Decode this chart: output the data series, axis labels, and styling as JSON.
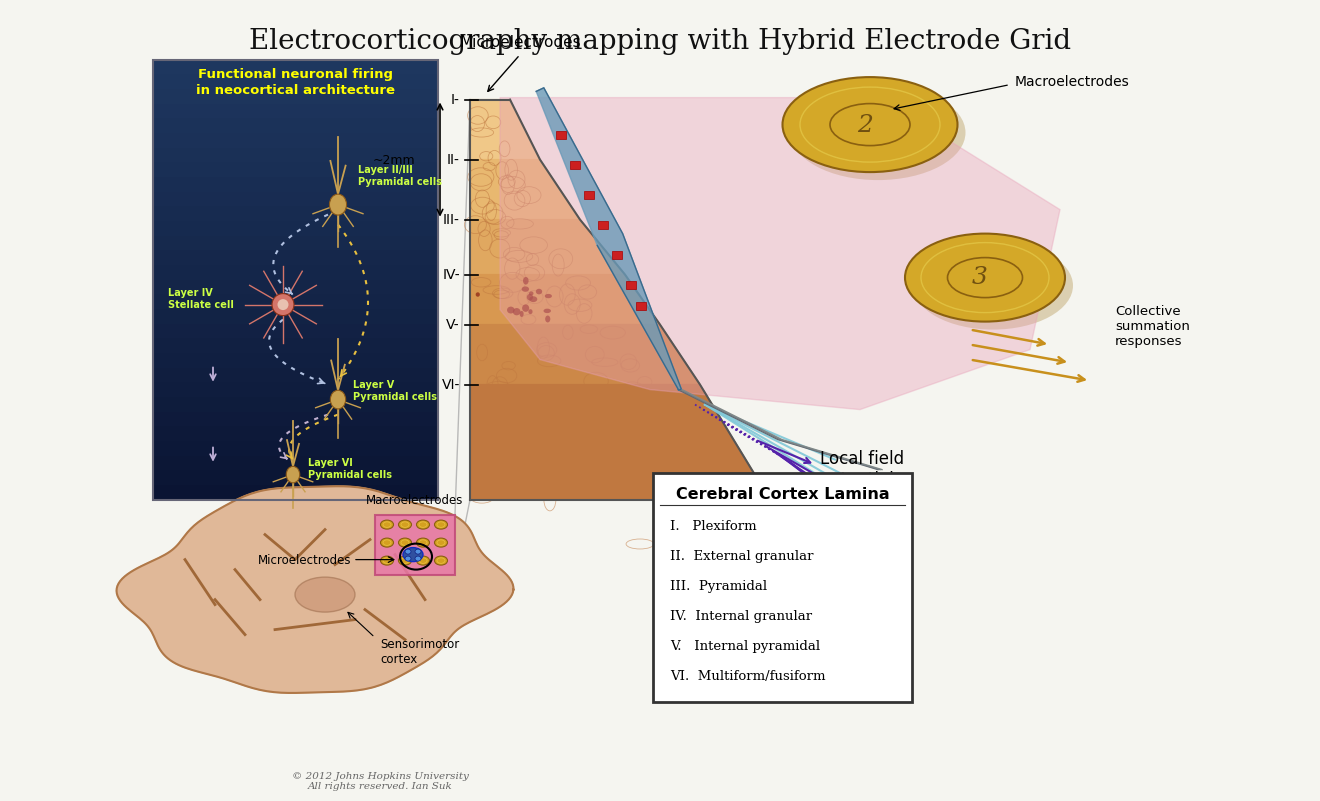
{
  "title": "Electrocorticography mapping with Hybrid Electrode Grid",
  "title_fontsize": 20,
  "title_color": "#111111",
  "background_color": "#f5f5f0",
  "legend_title": "Cerebral Cortex Lamina",
  "legend_items": [
    "I.   Plexiform",
    "II.  External granular",
    "III.  Pyramidal",
    "IV.  Internal granular",
    "V.   Internal pyramidal",
    "VI.  Multiform/fusiform"
  ],
  "layers": [
    "I",
    "II",
    "III",
    "IV",
    "V",
    "VI"
  ],
  "neuro_box_bg_top": "#0a1535",
  "neuro_box_bg_bot": "#162848",
  "neuro_box_title": "Functional neuronal firing\nin neocortical architecture",
  "neuro_box_title_color": "#ffff00",
  "layer_label_color": "#ccff44",
  "layer_labels": [
    "Layer II/III\nPyramidal cells",
    "Layer IV\nStellate cell",
    "Layer V\nPyramidal cells",
    "Layer VI\nPyramidal cells"
  ],
  "annotation_microelectrodes": "Microelectrodes",
  "annotation_macroelectrodes": "Macroelectrodes",
  "annotation_collective": "Collective\nsummation\nresponses",
  "annotation_local": "Local field\npotential\nrecording",
  "annotation_macroelectrodes_brain": "Macroelectrodes",
  "annotation_microelectrodes_brain": "Microelectrodes",
  "annotation_sensorimotor": "Sensorimotor\ncortex",
  "copyright_text": "© 2012 Johns Hopkins University\nAll rights reserved. Ian Suk",
  "depth_label": "~2mm",
  "macro_disk_color": "#c8a030",
  "neuron_gold": "#c8a050",
  "neuron_pink": "#d4756a",
  "arrow_blue": "#a8bcd8",
  "arrow_yellow": "#e8c040",
  "arrow_orange": "#e8a030",
  "arrow_purple": "#6633aa",
  "arrow_cyan": "#80c8d8"
}
